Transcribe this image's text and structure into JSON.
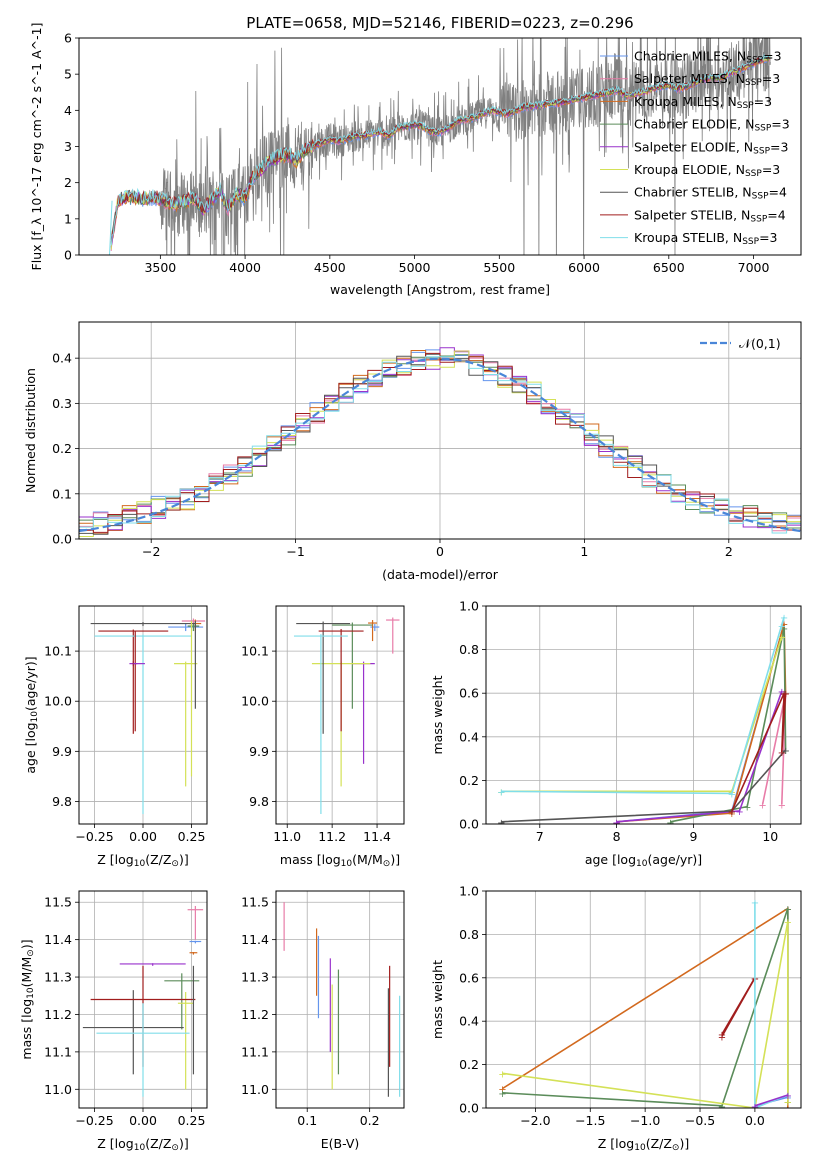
{
  "figure_title": "PLATE=0658, MJD=52146, FIBERID=0223, z=0.296",
  "colors": [
    "#6495ED",
    "#E87CA8",
    "#D2691E",
    "#5B8C5A",
    "#9932CC",
    "#D4E157",
    "#555555",
    "#A11D1D",
    "#80DEEA"
  ],
  "chart_data": [
    {
      "id": "spectrum",
      "type": "line",
      "title": "PLATE=0658, MJD=52146, FIBERID=0223, z=0.296",
      "xlabel": "wavelength [Angstrom, rest frame]",
      "ylabel": "Flux [f_λ 10^-17 erg cm^-2 s^-1 A^-1]",
      "xlim": [
        3020,
        7280
      ],
      "ylim": [
        0,
        6
      ],
      "xticks": [
        3500,
        4000,
        4500,
        5000,
        5500,
        6000,
        6500,
        7000
      ],
      "yticks": [
        0,
        1,
        2,
        3,
        4,
        5,
        6
      ],
      "grid": false,
      "legend_position": "upper right",
      "x": [
        3200,
        3250,
        3300,
        3350,
        3400,
        3450,
        3500,
        3550,
        3600,
        3650,
        3700,
        3750,
        3800,
        3850,
        3900,
        3950,
        4000,
        4050,
        4100,
        4150,
        4200,
        4250,
        4300,
        4350,
        4400,
        4450,
        4500,
        4550,
        4600,
        4650,
        4700,
        4750,
        4800,
        4850,
        4900,
        4950,
        5000,
        5050,
        5100,
        5150,
        5200,
        5250,
        5300,
        5350,
        5400,
        5450,
        5500,
        5550,
        5600,
        5650,
        5700,
        5750,
        5800,
        5850,
        5900,
        5950,
        6000,
        6050,
        6100,
        6150,
        6200,
        6250,
        6300,
        6350,
        6400,
        6450,
        6500,
        6550,
        6600,
        6650,
        6700,
        6750,
        6800,
        6850,
        6900,
        6950,
        7000,
        7050,
        7100
      ],
      "model_flux": [
        0.0,
        1.5,
        1.62,
        1.6,
        1.55,
        1.58,
        1.55,
        1.45,
        1.4,
        1.5,
        1.6,
        1.25,
        1.5,
        1.8,
        1.3,
        1.7,
        1.6,
        2.2,
        2.4,
        2.6,
        2.7,
        2.8,
        2.6,
        2.9,
        3.0,
        3.1,
        3.2,
        3.15,
        3.2,
        3.3,
        3.3,
        3.35,
        3.4,
        3.3,
        3.5,
        3.55,
        3.6,
        3.55,
        3.4,
        3.4,
        3.5,
        3.7,
        3.75,
        3.8,
        3.9,
        4.0,
        3.95,
        3.9,
        4.0,
        4.1,
        4.1,
        4.15,
        4.2,
        4.2,
        4.25,
        4.3,
        4.35,
        4.4,
        4.45,
        4.5,
        4.55,
        4.4,
        4.45,
        4.5,
        4.6,
        4.65,
        4.7,
        4.6,
        4.65,
        4.75,
        4.85,
        4.9,
        4.9,
        5.0,
        5.1,
        5.2,
        5.3,
        5.4,
        5.45
      ],
      "series": [
        {
          "name": "Chabrier MILES, N$_{SSP}$=3"
        },
        {
          "name": "Salpeter MILES, N$_{SSP}$=3"
        },
        {
          "name": "Kroupa MILES, N$_{SSP}$=3"
        },
        {
          "name": "Chabrier ELODIE, N$_{SSP}$=3"
        },
        {
          "name": "Salpeter ELODIE, N$_{SSP}$=3"
        },
        {
          "name": "Kroupa ELODIE, N$_{SSP}$=3"
        },
        {
          "name": "Chabrier STELIB, N$_{SSP}$=4"
        },
        {
          "name": "Salpeter STELIB, N$_{SSP}$=4"
        },
        {
          "name": "Kroupa STELIB, N$_{SSP}$=3"
        }
      ]
    },
    {
      "id": "residuals",
      "type": "line",
      "xlabel": "(data-model)/error",
      "ylabel": "Normed distribution",
      "xlim": [
        -2.5,
        2.5
      ],
      "ylim": [
        0,
        0.48
      ],
      "xticks": [
        -2,
        -1,
        0,
        1,
        2
      ],
      "yticks": [
        0.0,
        0.1,
        0.2,
        0.3,
        0.4
      ],
      "grid": true,
      "legend_position": "upper right",
      "legend": [
        "$\\mathcal{N}(0,1)$"
      ],
      "normal_curve": true
    },
    {
      "id": "age_vs_Z",
      "type": "scatter",
      "xlabel": "Z [log$_{10}$(Z/Z$_\\odot$)]",
      "ylabel": "age  [log$_{10}$(age/yr)]",
      "xlim": [
        -0.33,
        0.33
      ],
      "ylim": [
        9.755,
        10.19
      ],
      "xticks": [
        -0.25,
        0.0,
        0.25
      ],
      "yticks": [
        9.8,
        9.9,
        10.0,
        10.1
      ],
      "grid": true,
      "points": [
        {
          "x": 0.2,
          "xerr": 0.08,
          "y": 10.148,
          "yerr": 0.007
        },
        {
          "x": 0.25,
          "xerr": 0.07,
          "y": 10.158,
          "yerr": 0.008
        },
        {
          "x": 0.27,
          "xerr": 0.03,
          "y": 10.155,
          "yerr": 0.012
        },
        {
          "x": 0.24,
          "xerr": 0.05,
          "y": 10.15,
          "yerr": 0.01
        },
        {
          "x": -0.05,
          "xerr": 0.03,
          "y": 10.075,
          "yerr": 0.005
        },
        {
          "x": 0.19,
          "xerr": 0.1,
          "y": 10.075,
          "yerr": 0.005
        },
        {
          "x": 0.0,
          "xerr": 0.28,
          "y": 10.155,
          "yerr": 0.02
        },
        {
          "x": 0.0,
          "xerr": 0.25,
          "y": 10.14,
          "yerr": 0.02
        },
        {
          "x": 0.0,
          "xerr": 0.24,
          "y": 10.13,
          "yerr": 0.02
        }
      ]
    },
    {
      "id": "age_vs_mass",
      "type": "scatter",
      "xlabel": "mass [log$_{10}$(M/M$_\\odot$)]",
      "ylabel": "",
      "xlim": [
        10.95,
        11.52
      ],
      "ylim": [
        9.755,
        10.19
      ],
      "xticks": [
        11.0,
        11.2,
        11.4
      ],
      "yticks": [
        9.8,
        9.9,
        10.0,
        10.1
      ],
      "grid": true,
      "points": [
        {
          "x": 11.4,
          "xerr": 0.02,
          "y": 10.148,
          "yerr": 0.007
        },
        {
          "x": 11.48,
          "xerr": 0.03,
          "y": 10.16,
          "yerr": 0.008
        },
        {
          "x": 11.37,
          "xerr": 0.02,
          "y": 10.155,
          "yerr": 0.012
        },
        {
          "x": 11.29,
          "xerr": 0.08,
          "y": 10.15,
          "yerr": 0.01
        },
        {
          "x": 11.34,
          "xerr": 0.05,
          "y": 10.075,
          "yerr": 0.005
        },
        {
          "x": 11.22,
          "xerr": 0.12,
          "y": 10.075,
          "yerr": 0.005
        },
        {
          "x": 11.16,
          "xerr": 0.12,
          "y": 10.155,
          "yerr": 0.02
        },
        {
          "x": 11.24,
          "xerr": 0.1,
          "y": 10.14,
          "yerr": 0.02
        },
        {
          "x": 11.15,
          "xerr": 0.1,
          "y": 10.13,
          "yerr": 0.02
        }
      ]
    },
    {
      "id": "weight_vs_age",
      "type": "line",
      "xlabel": "age  [log$_{10}$(age/yr)]",
      "ylabel": "mass weight",
      "xlim": [
        6.3,
        10.4
      ],
      "ylim": [
        0,
        1
      ],
      "xticks": [
        7,
        8,
        9,
        10
      ],
      "yticks": [
        0.0,
        0.2,
        0.4,
        0.6,
        0.8,
        1.0
      ],
      "grid": true
    },
    {
      "id": "mass_vs_Z",
      "type": "scatter",
      "xlabel": "Z [log$_{10}$(Z/Z$_\\odot$)]",
      "ylabel": "mass [log$_{10}$(M/M$_\\odot$)]",
      "xlim": [
        -0.33,
        0.33
      ],
      "ylim": [
        10.95,
        11.53
      ],
      "xticks": [
        -0.25,
        0.0,
        0.25
      ],
      "yticks": [
        11.0,
        11.1,
        11.2,
        11.3,
        11.4,
        11.5
      ],
      "grid": true
    },
    {
      "id": "mass_vs_ebv",
      "type": "scatter",
      "xlabel": "E(B-V)",
      "ylabel": "",
      "xlim": [
        0.05,
        0.255
      ],
      "ylim": [
        10.95,
        11.53
      ],
      "xticks": [
        0.1,
        0.2
      ],
      "yticks": [
        11.0,
        11.1,
        11.2,
        11.3,
        11.4,
        11.5
      ],
      "grid": true
    },
    {
      "id": "weight_vs_Z",
      "type": "line",
      "xlabel": "Z [log$_{10}$(Z/Z$_\\odot$)]",
      "ylabel": "mass weight",
      "xlim": [
        -2.45,
        0.42
      ],
      "ylim": [
        0,
        1
      ],
      "xticks": [
        -2.0,
        -1.5,
        -1.0,
        -0.5,
        0.0
      ],
      "yticks": [
        0.0,
        0.2,
        0.4,
        0.6,
        0.8,
        1.0
      ],
      "grid": true
    }
  ]
}
